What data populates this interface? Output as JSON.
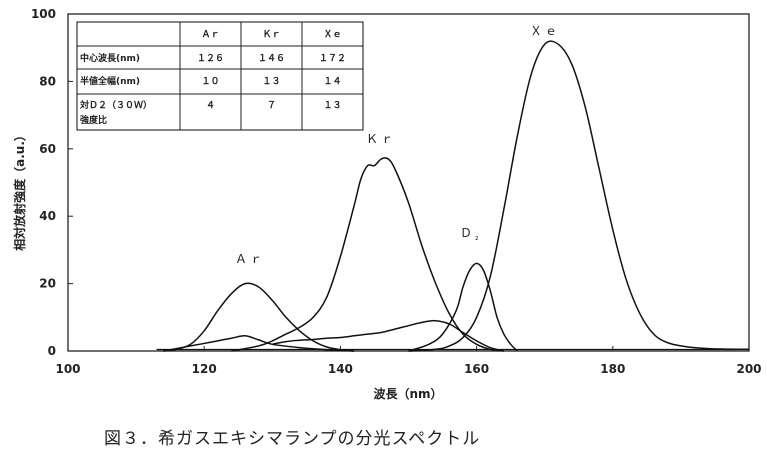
{
  "chart_data": {
    "type": "line",
    "xlabel": "波長（nm）",
    "ylabel": "相対放射強度（a.u.）",
    "xlim": [
      100,
      200
    ],
    "ylim": [
      0,
      100
    ],
    "xticks": [
      "100",
      "120",
      "140",
      "160",
      "180",
      "200"
    ],
    "yticks": [
      "0",
      "20",
      "40",
      "60",
      "80",
      "100"
    ],
    "grid": false,
    "series": [
      {
        "name": "Ar",
        "x": [
          114,
          116,
          118,
          120,
          122,
          124,
          126,
          128,
          130,
          132,
          134,
          136,
          138,
          140,
          142
        ],
        "y": [
          0,
          0.5,
          2,
          6,
          12,
          17,
          20,
          19,
          15,
          10,
          6,
          3,
          1.2,
          0.4,
          0
        ]
      },
      {
        "name": "Ar-sub",
        "x": [
          114,
          118,
          122,
          124,
          126,
          128,
          130,
          134,
          138,
          142
        ],
        "y": [
          0,
          1.5,
          3,
          3.8,
          4.5,
          3.3,
          2,
          1,
          0.4,
          0
        ]
      },
      {
        "name": "Kr",
        "x": [
          124,
          128,
          130,
          132,
          134,
          136,
          138,
          140,
          142,
          143,
          144,
          145,
          146,
          147,
          148,
          150,
          152,
          154,
          156,
          158,
          160,
          162,
          164
        ],
        "y": [
          0,
          1.5,
          3,
          5,
          7,
          10,
          16,
          28,
          43,
          51,
          55,
          55,
          57,
          57,
          54,
          44,
          31,
          20,
          11,
          5,
          2,
          0.5,
          0
        ]
      },
      {
        "name": "Kr-sub",
        "x": [
          130,
          132,
          134,
          136,
          138,
          140,
          142,
          144,
          146,
          148,
          150,
          152,
          154,
          156,
          158,
          160,
          162,
          164
        ],
        "y": [
          2,
          2.8,
          3.2,
          3.4,
          3.8,
          4,
          4.5,
          5,
          5.5,
          6.5,
          7.5,
          8.5,
          9,
          8,
          5.5,
          3,
          1,
          0
        ]
      },
      {
        "name": "D2",
        "x": [
          150,
          153,
          155,
          157,
          158,
          159,
          160,
          161,
          162,
          163,
          164,
          165,
          166
        ],
        "y": [
          0,
          2,
          5,
          12,
          19,
          24,
          26,
          24,
          18,
          10,
          5,
          2,
          0
        ]
      },
      {
        "name": "Xe",
        "x": [
          150,
          154,
          156,
          158,
          160,
          162,
          164,
          166,
          168,
          170,
          172,
          174,
          176,
          178,
          180,
          182,
          184,
          186,
          188,
          190,
          194,
          200
        ],
        "y": [
          0,
          0.5,
          1.5,
          4,
          10,
          22,
          42,
          64,
          82,
          91,
          91,
          85,
          72,
          54,
          36,
          21,
          11,
          5,
          2.5,
          1.5,
          0.7,
          0.5
        ]
      }
    ],
    "annotations": [
      "Ａｒ",
      "Ｋｒ",
      "Ｘｅ",
      "Ｄ₂"
    ]
  },
  "table": {
    "header": [
      "",
      "Ａｒ",
      "Ｋｒ",
      "Ｘｅ"
    ],
    "rows": [
      [
        "中心波長(nm)",
        "１２６",
        "１４６",
        "１７２"
      ],
      [
        "半値全幅(nm)",
        "１０",
        "１３",
        "１４"
      ],
      [
        "対Ｄ２（３０Ｗ）",
        "４",
        "７",
        "１３"
      ],
      [
        "強度比",
        "",
        "",
        ""
      ]
    ]
  },
  "labels": {
    "ar": "Ａｒ",
    "kr": "Ｋｒ",
    "xe": "Ｘｅ",
    "d2": "Ｄ",
    "d2_sub": "₂"
  },
  "caption": "図３．希ガスエキシマランプの分光スペクトル"
}
